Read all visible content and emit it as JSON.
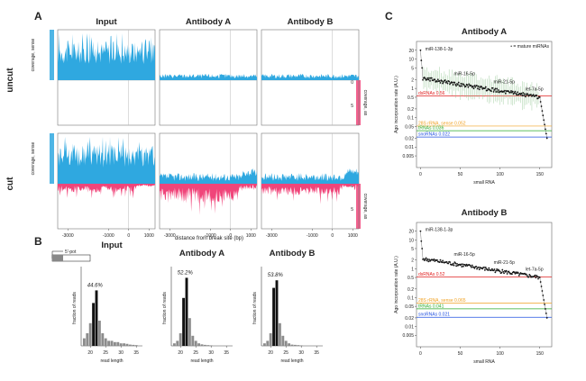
{
  "panels": {
    "a": "A",
    "b": "B",
    "c": "C"
  },
  "panel_a": {
    "columns": [
      "Input",
      "Antibody A",
      "Antibody B"
    ],
    "rows": [
      "uncut",
      "cut"
    ],
    "left_axis": "coverage, sense",
    "right_axis": "coverage, as",
    "right_ticks": [
      "0",
      "5"
    ],
    "xlabel": "distance from break site (bp)",
    "xticks": [
      "-3000",
      "-1000",
      "0",
      "1000"
    ],
    "colors": {
      "sense": "#2fa8e0",
      "antisense": "#f0457a",
      "grid": "#bbbbbb"
    }
  },
  "panel_b": {
    "schematic_label": "5'-pot",
    "xlabel": "read length",
    "ylabel": "fraction of reads",
    "xticks": [
      "20",
      "25",
      "30",
      "35"
    ]
  },
  "chart_data": [
    {
      "type": "bar",
      "title": "Input",
      "xlabel": "read length",
      "ylabel": "fraction of reads",
      "x": [
        18,
        19,
        20,
        21,
        22,
        23,
        24,
        25,
        26,
        27,
        28,
        29,
        30,
        31,
        32,
        33,
        34,
        35
      ],
      "values": [
        0.03,
        0.05,
        0.09,
        0.17,
        0.22,
        0.1,
        0.05,
        0.03,
        0.02,
        0.02,
        0.015,
        0.015,
        0.01,
        0.01,
        0.008,
        0.005,
        0.004,
        0.003
      ],
      "highlight": [
        21,
        22
      ],
      "annotation": "44.6%"
    },
    {
      "type": "bar",
      "title": "Antibody A",
      "xlabel": "read length",
      "ylabel": "fraction of reads",
      "x": [
        18,
        19,
        20,
        21,
        22,
        23,
        24,
        25,
        26,
        27,
        28,
        29,
        30
      ],
      "values": [
        0.01,
        0.02,
        0.05,
        0.19,
        0.27,
        0.11,
        0.04,
        0.02,
        0.01,
        0.006,
        0.004,
        0.003,
        0.002
      ],
      "highlight": [
        21,
        22
      ],
      "annotation": "52.2%"
    },
    {
      "type": "bar",
      "title": "Antibody B",
      "xlabel": "read length",
      "ylabel": "fraction of reads",
      "x": [
        18,
        19,
        20,
        21,
        22,
        23,
        24,
        25,
        26,
        27,
        28,
        29,
        30
      ],
      "values": [
        0.01,
        0.02,
        0.05,
        0.23,
        0.26,
        0.09,
        0.04,
        0.02,
        0.01,
        0.005,
        0.004,
        0.003,
        0.002
      ],
      "highlight": [
        21,
        22
      ],
      "annotation": "53.8%"
    },
    {
      "type": "scatter",
      "title": "Antibody A",
      "xlabel": "small RNA",
      "ylabel": "Ago incorporation rate (A.U.)",
      "log_y": true,
      "xlim": [
        -5,
        165
      ],
      "ylim": [
        0.002,
        40
      ],
      "xticks": [
        "0",
        "50",
        "100",
        "150"
      ],
      "yticks": [
        "20",
        "10",
        "5",
        "2",
        "1",
        "0.5",
        "0.2",
        "0.1",
        "0.05",
        "0.02",
        "0.01",
        "0.005"
      ],
      "legend": "• = mature miRNAs",
      "labels": [
        "miR-138-1-3p",
        "miR-16-5p",
        "miR-21-5p",
        "let-7a-5p"
      ],
      "reference_lines": [
        {
          "name": "dsRNAs 0.56",
          "value": 0.56,
          "color": "#e02020"
        },
        {
          "name": "28S rRNA, sense 0.052",
          "value": 0.052,
          "color": "#f0a020"
        },
        {
          "name": "tRNAs 0.036",
          "value": 0.036,
          "color": "#2aaa2a"
        },
        {
          "name": "snoRNAs 0.022",
          "value": 0.022,
          "color": "#2050e0"
        }
      ]
    },
    {
      "type": "scatter",
      "title": "Antibody B",
      "xlabel": "small RNA",
      "ylabel": "Ago incorporation rate (A.U.)",
      "log_y": true,
      "xlim": [
        -5,
        165
      ],
      "ylim": [
        0.002,
        40
      ],
      "xticks": [
        "0",
        "50",
        "100",
        "150"
      ],
      "yticks": [
        "20",
        "10",
        "5",
        "2",
        "1",
        "0.5",
        "0.2",
        "0.1",
        "0.05",
        "0.02",
        "0.01",
        "0.005"
      ],
      "labels": [
        "miR-138-1-3p",
        "miR-16-5p",
        "miR-21-5p",
        "let-7a-5p"
      ],
      "reference_lines": [
        {
          "name": "dsRNAs 0.52",
          "value": 0.52,
          "color": "#e02020"
        },
        {
          "name": "28S rRNA, sense 0.065",
          "value": 0.065,
          "color": "#f0a020"
        },
        {
          "name": "tRNAs 0.041",
          "value": 0.041,
          "color": "#2aaa2a"
        },
        {
          "name": "snoRNAs 0.021",
          "value": 0.021,
          "color": "#2050e0"
        }
      ]
    }
  ]
}
